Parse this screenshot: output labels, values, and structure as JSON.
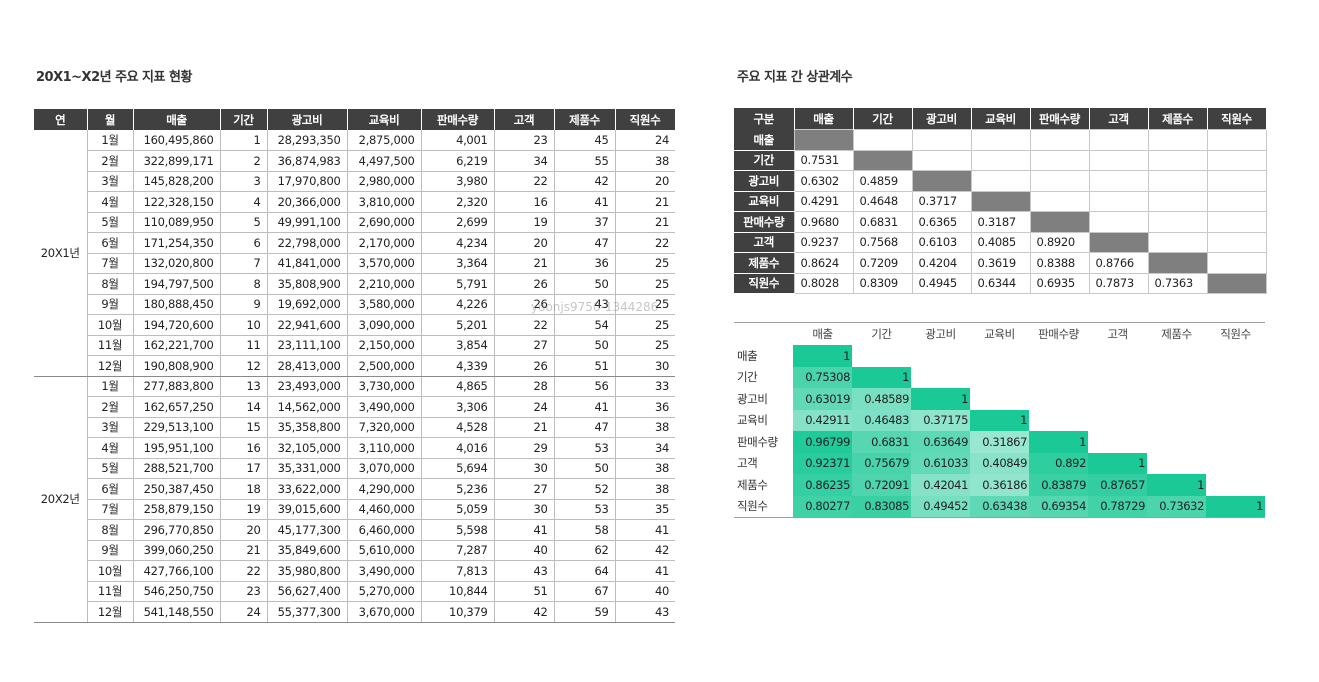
{
  "title_left": "20X1~X2년 주요 지표 현황",
  "title_right": "주요 지표 간 상관계수",
  "watermark": "yoonjs9750-1344286",
  "main_table": {
    "headers": [
      "연",
      "월",
      "매출",
      "기간",
      "광고비",
      "교육비",
      "판매수량",
      "고객",
      "제품수",
      "직원수"
    ],
    "groups": [
      {
        "year": "20X1년",
        "rows": [
          [
            "1월",
            "160,495,860",
            "1",
            "28,293,350",
            "2,875,000",
            "4,001",
            "23",
            "45",
            "24"
          ],
          [
            "2월",
            "322,899,171",
            "2",
            "36,874,983",
            "4,497,500",
            "6,219",
            "34",
            "55",
            "38"
          ],
          [
            "3월",
            "145,828,200",
            "3",
            "17,970,800",
            "2,980,000",
            "3,980",
            "22",
            "42",
            "20"
          ],
          [
            "4월",
            "122,328,150",
            "4",
            "20,366,000",
            "3,810,000",
            "2,320",
            "16",
            "41",
            "21"
          ],
          [
            "5월",
            "110,089,950",
            "5",
            "49,991,100",
            "2,690,000",
            "2,699",
            "19",
            "37",
            "21"
          ],
          [
            "6월",
            "171,254,350",
            "6",
            "22,798,000",
            "2,170,000",
            "4,234",
            "20",
            "47",
            "22"
          ],
          [
            "7월",
            "132,020,800",
            "7",
            "41,841,000",
            "3,570,000",
            "3,364",
            "21",
            "36",
            "25"
          ],
          [
            "8월",
            "194,797,500",
            "8",
            "35,808,900",
            "2,210,000",
            "5,791",
            "26",
            "50",
            "25"
          ],
          [
            "9월",
            "180,888,450",
            "9",
            "19,692,000",
            "3,580,000",
            "4,226",
            "26",
            "43",
            "25"
          ],
          [
            "10월",
            "194,720,600",
            "10",
            "22,941,600",
            "3,090,000",
            "5,201",
            "22",
            "54",
            "25"
          ],
          [
            "11월",
            "162,221,700",
            "11",
            "23,111,100",
            "2,150,000",
            "3,854",
            "27",
            "50",
            "25"
          ],
          [
            "12월",
            "190,808,900",
            "12",
            "28,413,000",
            "2,500,000",
            "4,339",
            "26",
            "51",
            "30"
          ]
        ]
      },
      {
        "year": "20X2년",
        "rows": [
          [
            "1월",
            "277,883,800",
            "13",
            "23,493,000",
            "3,730,000",
            "4,865",
            "28",
            "56",
            "33"
          ],
          [
            "2월",
            "162,657,250",
            "14",
            "14,562,000",
            "3,490,000",
            "3,306",
            "24",
            "41",
            "36"
          ],
          [
            "3월",
            "229,513,100",
            "15",
            "35,358,800",
            "7,320,000",
            "4,528",
            "21",
            "47",
            "38"
          ],
          [
            "4월",
            "195,951,100",
            "16",
            "32,105,000",
            "3,110,000",
            "4,016",
            "29",
            "53",
            "34"
          ],
          [
            "5월",
            "288,521,700",
            "17",
            "35,331,000",
            "3,070,000",
            "5,694",
            "30",
            "50",
            "38"
          ],
          [
            "6월",
            "250,387,450",
            "18",
            "33,622,000",
            "4,290,000",
            "5,236",
            "27",
            "52",
            "38"
          ],
          [
            "7월",
            "258,879,150",
            "19",
            "39,015,600",
            "4,460,000",
            "5,059",
            "30",
            "53",
            "35"
          ],
          [
            "8월",
            "296,770,850",
            "20",
            "45,177,300",
            "6,460,000",
            "5,598",
            "41",
            "58",
            "41"
          ],
          [
            "9월",
            "399,060,250",
            "21",
            "35,849,600",
            "5,610,000",
            "7,287",
            "40",
            "62",
            "42"
          ],
          [
            "10월",
            "427,766,100",
            "22",
            "35,980,800",
            "3,490,000",
            "7,813",
            "43",
            "64",
            "41"
          ],
          [
            "11월",
            "546,250,750",
            "23",
            "56,627,400",
            "5,270,000",
            "10,844",
            "51",
            "67",
            "40"
          ],
          [
            "12월",
            "541,148,550",
            "24",
            "55,377,300",
            "3,670,000",
            "10,379",
            "42",
            "59",
            "43"
          ]
        ]
      }
    ]
  },
  "corr_table": {
    "corner": "구분",
    "labels": [
      "매출",
      "기간",
      "광고비",
      "교육비",
      "판매수량",
      "고객",
      "제품수",
      "직원수"
    ],
    "values": [
      [],
      [
        "0.7531"
      ],
      [
        "0.6302",
        "0.4859"
      ],
      [
        "0.4291",
        "0.4648",
        "0.3717"
      ],
      [
        "0.9680",
        "0.6831",
        "0.6365",
        "0.3187"
      ],
      [
        "0.9237",
        "0.7568",
        "0.6103",
        "0.4085",
        "0.8920"
      ],
      [
        "0.8624",
        "0.7209",
        "0.4204",
        "0.3619",
        "0.8388",
        "0.8766"
      ],
      [
        "0.8028",
        "0.8309",
        "0.4945",
        "0.6344",
        "0.6935",
        "0.7873",
        "0.7363"
      ]
    ]
  },
  "heat_table": {
    "labels": [
      "매출",
      "기간",
      "광고비",
      "교육비",
      "판매수량",
      "고객",
      "제품수",
      "직원수"
    ],
    "values": [
      [
        "1"
      ],
      [
        "0.75308",
        "1"
      ],
      [
        "0.63019",
        "0.48589",
        "1"
      ],
      [
        "0.42911",
        "0.46483",
        "0.37175",
        "1"
      ],
      [
        "0.96799",
        "0.6831",
        "0.63649",
        "0.31867",
        "1"
      ],
      [
        "0.92371",
        "0.75679",
        "0.61033",
        "0.40849",
        "0.892",
        "1"
      ],
      [
        "0.86235",
        "0.72091",
        "0.42041",
        "0.36186",
        "0.83879",
        "0.87657",
        "1"
      ],
      [
        "0.80277",
        "0.83085",
        "0.49452",
        "0.63438",
        "0.69354",
        "0.78729",
        "0.73632",
        "1"
      ]
    ],
    "color_low": "#ffffff",
    "color_high": "#1bc996"
  }
}
